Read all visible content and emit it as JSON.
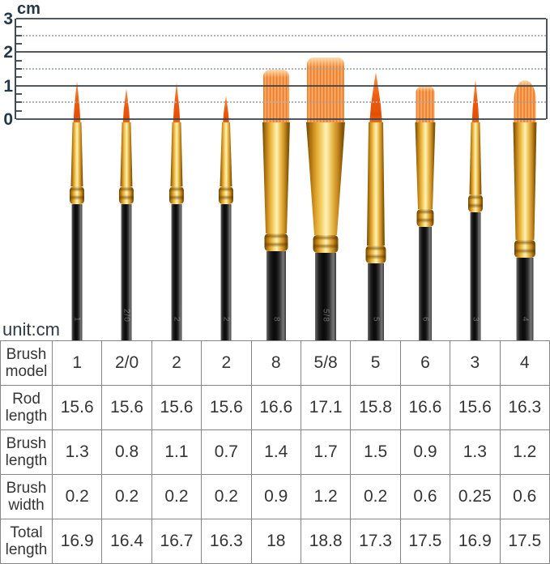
{
  "ruler": {
    "unit_label": "cm",
    "tick_labels": [
      "3",
      "2",
      "1",
      "0"
    ],
    "cm_values": [
      3,
      2,
      1,
      0
    ],
    "minor_tick_step_cm": 0.25,
    "dotted_line_step_cm": 0.5
  },
  "note": "unit:cm",
  "table": {
    "row_headers": [
      "Brush model",
      "Rod length",
      "Brush length",
      "Brush width",
      "Total length"
    ]
  },
  "brushes": [
    {
      "model": "1",
      "rod_length": "15.6",
      "brush_length": "1.3",
      "brush_width": "0.2",
      "total_length": "16.9",
      "shape": "round"
    },
    {
      "model": "2/0",
      "rod_length": "15.6",
      "brush_length": "0.8",
      "brush_width": "0.2",
      "total_length": "16.4",
      "shape": "round"
    },
    {
      "model": "2",
      "rod_length": "15.6",
      "brush_length": "1.1",
      "brush_width": "0.2",
      "total_length": "16.7",
      "shape": "round"
    },
    {
      "model": "2",
      "rod_length": "15.6",
      "brush_length": "0.7",
      "brush_width": "0.2",
      "total_length": "16.3",
      "shape": "round"
    },
    {
      "model": "8",
      "rod_length": "16.6",
      "brush_length": "1.4",
      "brush_width": "0.9",
      "total_length": "18",
      "shape": "flat"
    },
    {
      "model": "5/8",
      "rod_length": "17.1",
      "brush_length": "1.7",
      "brush_width": "1.2",
      "total_length": "18.8",
      "shape": "flat"
    },
    {
      "model": "5",
      "rod_length": "15.8",
      "brush_length": "1.5",
      "brush_width": "0.2",
      "total_length": "17.3",
      "shape": "round"
    },
    {
      "model": "6",
      "rod_length": "16.6",
      "brush_length": "0.9",
      "brush_width": "0.6",
      "total_length": "17.5",
      "shape": "flat"
    },
    {
      "model": "3",
      "rod_length": "15.6",
      "brush_length": "1.3",
      "brush_width": "0.25",
      "total_length": "16.9",
      "shape": "round"
    },
    {
      "model": "4",
      "rod_length": "16.3",
      "brush_length": "1.2",
      "brush_width": "0.6",
      "total_length": "17.5",
      "shape": "dome"
    }
  ],
  "colors": {
    "bristle_orange": "#ee5d10",
    "bristle_flat_orange": "#f59c4e",
    "ferrule_gold": "#e8b84a",
    "handle_black": "#111111",
    "ruler_line": "#38424c",
    "label_navy": "#24384a",
    "table_border": "#858585",
    "background": "#ffffff"
  }
}
